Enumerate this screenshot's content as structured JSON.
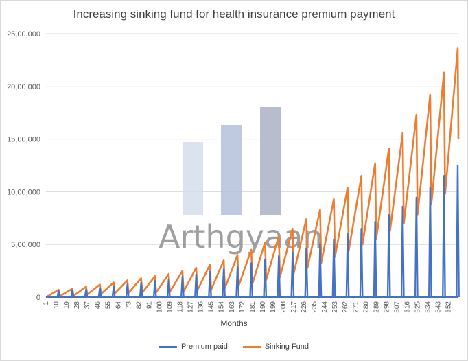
{
  "chart_data": {
    "type": "line",
    "title": "Increasing sinking fund for health insurance premium payment",
    "xlabel": "Months",
    "ylabel": "",
    "ylim": [
      0,
      2500000
    ],
    "yticks": [
      0,
      500000,
      1000000,
      1500000,
      2000000,
      2500000
    ],
    "ytick_labels": [
      "0",
      "5,00,000",
      "10,00,000",
      "15,00,000",
      "20,00,000",
      "25,00,000"
    ],
    "xlim": [
      1,
      360
    ],
    "xticks": [
      1,
      10,
      19,
      28,
      37,
      46,
      55,
      64,
      73,
      82,
      91,
      100,
      109,
      118,
      127,
      136,
      145,
      154,
      163,
      172,
      181,
      190,
      199,
      208,
      217,
      226,
      235,
      244,
      253,
      262,
      271,
      280,
      289,
      298,
      307,
      316,
      325,
      334,
      343,
      352
    ],
    "grid": true,
    "legend_position": "bottom",
    "series": [
      {
        "name": "Premium paid",
        "color": "#4472c4",
        "description_of_pattern": "annual premium spike every 12 months",
        "annual_premium": [
          [
            12,
            60000
          ],
          [
            24,
            67000
          ],
          [
            36,
            75000
          ],
          [
            48,
            90000
          ],
          [
            60,
            105000
          ],
          [
            72,
            120000
          ],
          [
            84,
            137000
          ],
          [
            96,
            155000
          ],
          [
            108,
            170000
          ],
          [
            120,
            196000
          ],
          [
            132,
            216000
          ],
          [
            144,
            240000
          ],
          [
            156,
            265000
          ],
          [
            168,
            292000
          ],
          [
            180,
            322000
          ],
          [
            192,
            355000
          ],
          [
            204,
            390000
          ],
          [
            216,
            425000
          ],
          [
            228,
            462000
          ],
          [
            240,
            505000
          ],
          [
            252,
            548000
          ],
          [
            264,
            598000
          ],
          [
            276,
            650000
          ],
          [
            288,
            715000
          ],
          [
            300,
            780000
          ],
          [
            312,
            860000
          ],
          [
            324,
            945000
          ],
          [
            336,
            1040000
          ],
          [
            348,
            1150000
          ],
          [
            360,
            1250000
          ]
        ]
      },
      {
        "name": "Sinking Fund",
        "color": "#ed7d31",
        "annual_peak_before_payment": [
          [
            12,
            70000
          ],
          [
            24,
            80000
          ],
          [
            36,
            100000
          ],
          [
            48,
            120000
          ],
          [
            60,
            140000
          ],
          [
            72,
            160000
          ],
          [
            84,
            180000
          ],
          [
            96,
            200000
          ],
          [
            108,
            220000
          ],
          [
            120,
            250000
          ],
          [
            132,
            280000
          ],
          [
            144,
            310000
          ],
          [
            156,
            350000
          ],
          [
            168,
            400000
          ],
          [
            180,
            450000
          ],
          [
            192,
            520000
          ],
          [
            204,
            580000
          ],
          [
            216,
            650000
          ],
          [
            228,
            740000
          ],
          [
            240,
            830000
          ],
          [
            252,
            930000
          ],
          [
            264,
            1040000
          ],
          [
            276,
            1150000
          ],
          [
            288,
            1270000
          ],
          [
            300,
            1410000
          ],
          [
            312,
            1560000
          ],
          [
            324,
            1730000
          ],
          [
            336,
            1920000
          ],
          [
            348,
            2130000
          ],
          [
            360,
            2360000
          ]
        ],
        "after_payment_last_month": 1500000
      }
    ]
  },
  "watermark": {
    "text": "Arthgyaan",
    "bar_colors": [
      "#d5deef",
      "#b4c1dc",
      "#abb2c4"
    ]
  }
}
